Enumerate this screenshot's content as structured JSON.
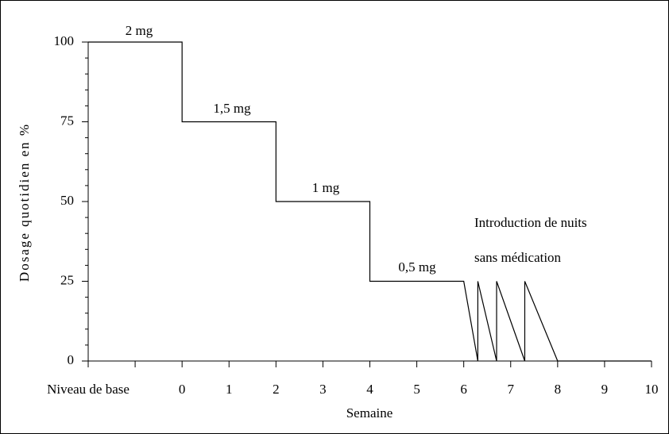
{
  "chart_data": {
    "type": "line",
    "x_label": "Semaine",
    "y_label": "Dosage quotidien en %",
    "x": [
      -2,
      0,
      0,
      2,
      2,
      4,
      4,
      6,
      6.3,
      6.3,
      6.7,
      6.7,
      7.3,
      7.3,
      8,
      10
    ],
    "values": [
      100,
      100,
      75,
      75,
      50,
      50,
      25,
      25,
      0,
      25,
      0,
      25,
      0,
      25,
      0,
      0
    ],
    "color": "#000000",
    "xlim": [
      -2,
      10
    ],
    "xticks": [
      {
        "value": -2,
        "label": "Niveau de base"
      },
      0,
      1,
      2,
      3,
      4,
      5,
      6,
      7,
      8,
      9,
      10
    ],
    "xminorticks": [
      -1
    ],
    "ylim": [
      0,
      100
    ],
    "yticks": [
      0,
      25,
      50,
      75,
      100
    ],
    "yminorticks": [
      5,
      10,
      15,
      20,
      30,
      35,
      40,
      45,
      55,
      60,
      65,
      70,
      80,
      85,
      90,
      95
    ],
    "annotations": [
      "2 mg",
      "1,5 mg",
      "1 mg",
      "0,5 mg",
      "Introduction de nuits",
      "sans médication"
    ]
  }
}
